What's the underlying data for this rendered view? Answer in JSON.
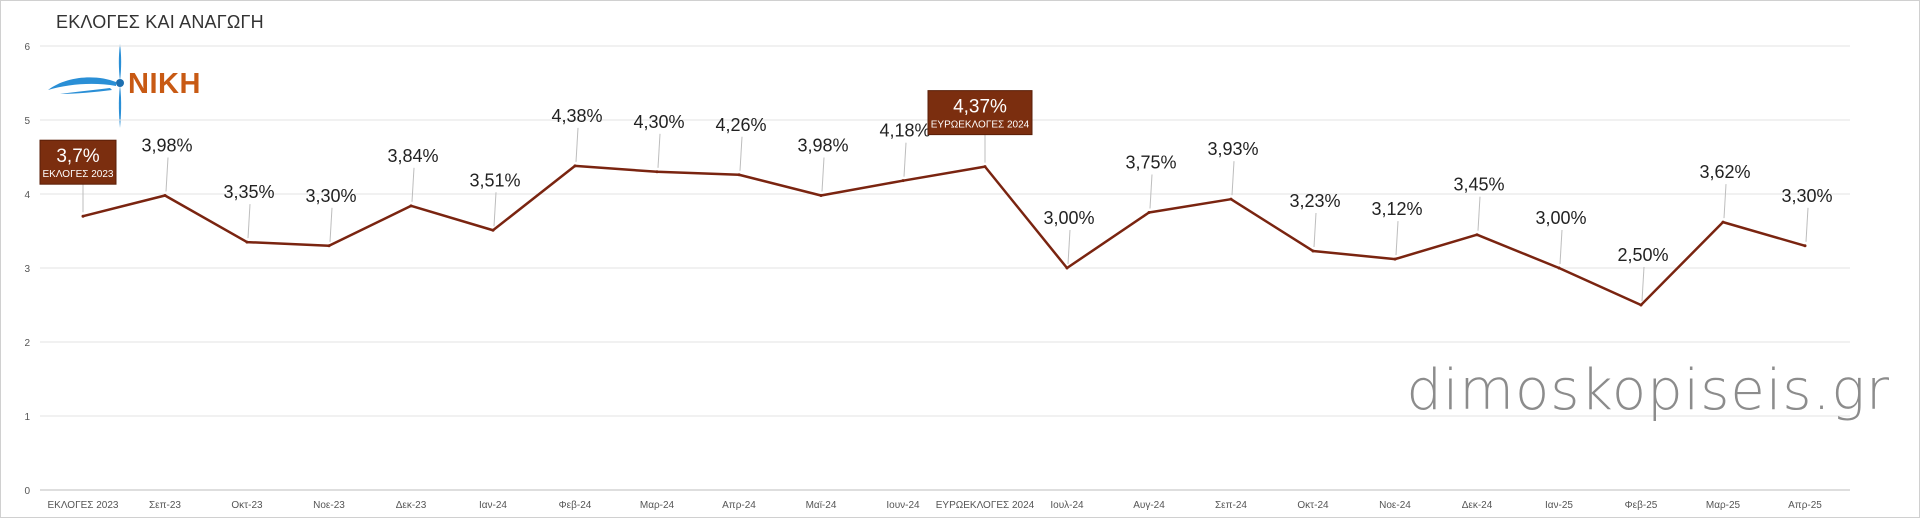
{
  "chart_data": {
    "type": "line",
    "title": "ΕΚΛΟΓΕΣ ΚΑΙ ΑΝΑΓΩΓΗ",
    "watermark": "dimoskopiseis.gr",
    "logo_text": "ΝΙΚΗ",
    "logo_icon": "wind-turbine-icon",
    "ylim": [
      0,
      6
    ],
    "yticks": [
      "0",
      "1",
      "2",
      "3",
      "4",
      "5",
      "6"
    ],
    "grid": true,
    "line_color": "#7a2410",
    "highlight_color": "#7b2e0f",
    "categories": [
      "ΕΚΛΟΓΕΣ 2023",
      "Σεπ-23",
      "Οκτ-23",
      "Νοε-23",
      "Δεκ-23",
      "Ιαν-24",
      "Φεβ-24",
      "Μαρ-24",
      "Απρ-24",
      "Μαϊ-24",
      "Ιουν-24",
      "ΕΥΡΩΕΚΛΟΓΕΣ 2024",
      "Ιουλ-24",
      "Αυγ-24",
      "Σεπ-24",
      "Οκτ-24",
      "Νοε-24",
      "Δεκ-24",
      "Ιαν-25",
      "Φεβ-25",
      "Μαρ-25",
      "Απρ-25"
    ],
    "values": [
      3.7,
      3.98,
      3.35,
      3.3,
      3.84,
      3.51,
      4.38,
      4.3,
      4.26,
      3.98,
      4.18,
      4.37,
      3.0,
      3.75,
      3.93,
      3.23,
      3.12,
      3.45,
      3.0,
      2.5,
      3.62,
      3.3
    ],
    "labels": [
      "3,7%",
      "3,98%",
      "3,35%",
      "3,30%",
      "3,84%",
      "3,51%",
      "4,38%",
      "4,30%",
      "4,26%",
      "3,98%",
      "4,18%",
      "4,37%",
      "3,00%",
      "3,75%",
      "3,93%",
      "3,23%",
      "3,12%",
      "3,45%",
      "3,00%",
      "2,50%",
      "3,62%",
      "3,30%"
    ],
    "highlights": [
      {
        "index": 0,
        "value_label": "3,7%",
        "caption": "ΕΚΛΟΓΕΣ 2023"
      },
      {
        "index": 11,
        "value_label": "4,37%",
        "caption": "ΕΥΡΩΕΚΛΟΓΕΣ 2024"
      }
    ]
  }
}
